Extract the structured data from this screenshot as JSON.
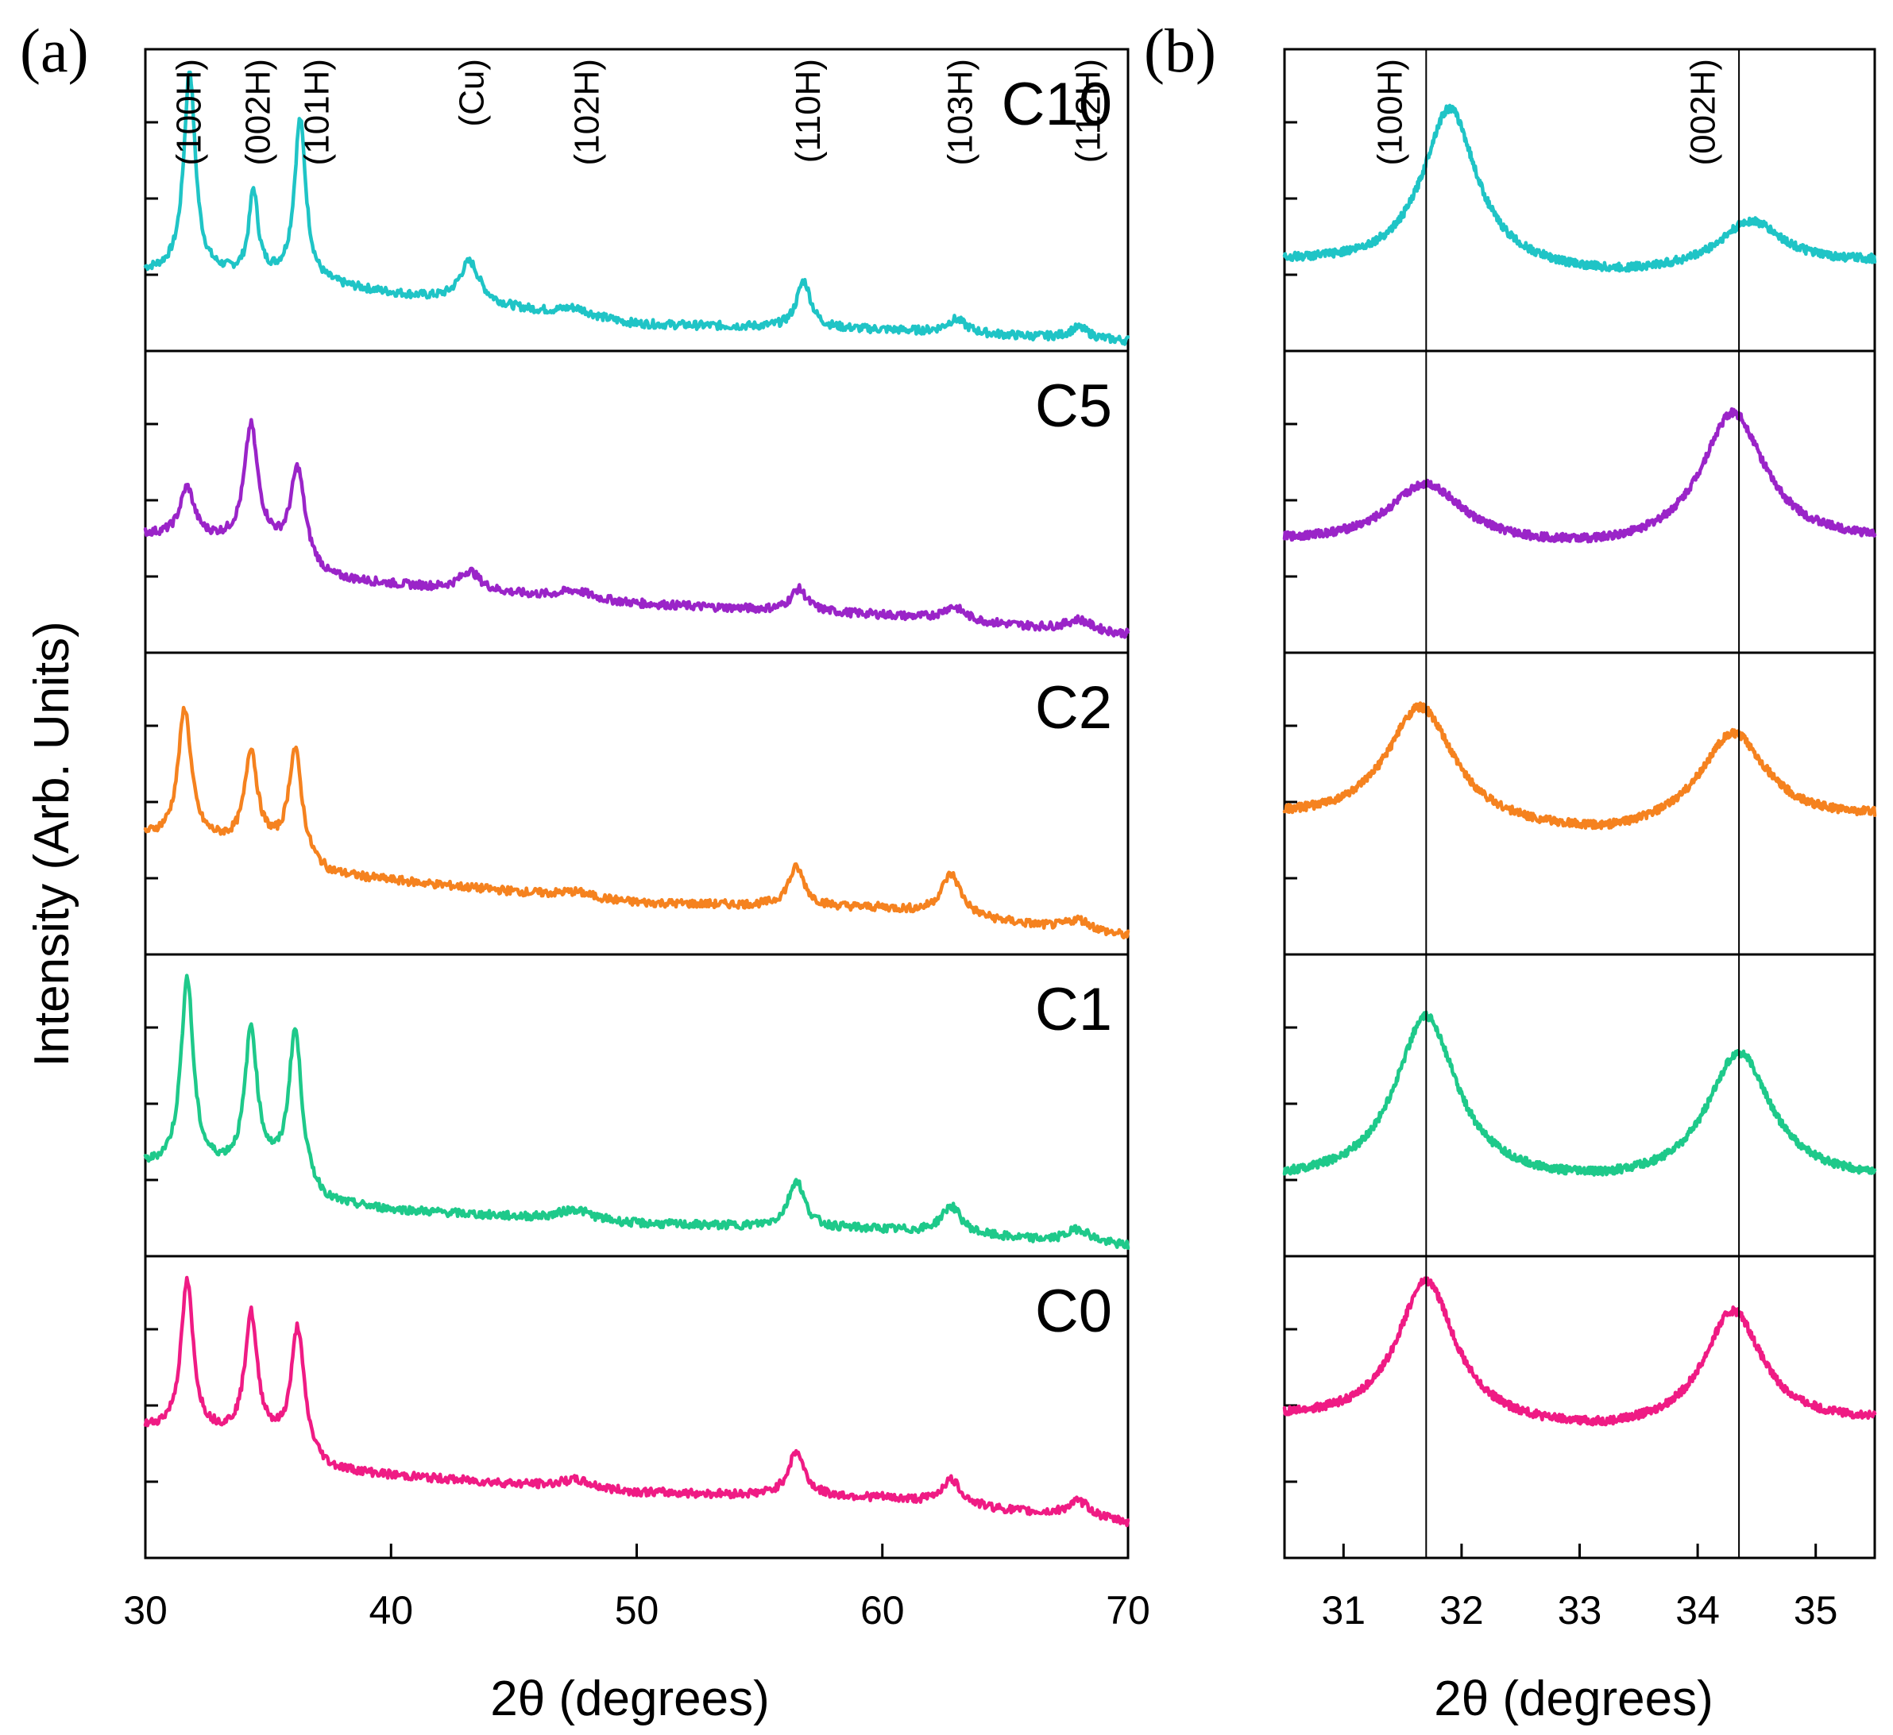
{
  "chart_data": [
    {
      "id": "a",
      "type": "line",
      "panel_label": "(a)",
      "xlabel": "2θ (degrees)",
      "ylabel": "Intensity (Arb. Units)",
      "xlim": [
        30,
        70
      ],
      "ylim": [
        0,
        1
      ],
      "x_ticks": [
        30,
        40,
        50,
        60,
        70
      ],
      "x_tick_labels": [
        "30",
        "40",
        "50",
        "60",
        "70"
      ],
      "stacked": true,
      "series": [
        {
          "name": "C10",
          "label": "C10",
          "color": "#1fc4c6",
          "baseline": [
            [
              30,
              0.22
            ],
            [
              35,
              0.2
            ],
            [
              40,
              0.14
            ],
            [
              50,
              0.03
            ],
            [
              60,
              0.01
            ],
            [
              70,
              -0.03
            ]
          ],
          "peaks": [
            [
              31.8,
              0.73,
              0.28
            ],
            [
              34.4,
              0.3,
              0.22
            ],
            [
              36.3,
              0.58,
              0.28
            ],
            [
              43.2,
              0.15,
              0.5
            ],
            [
              47.5,
              0.03,
              0.8
            ],
            [
              56.8,
              0.17,
              0.35
            ],
            [
              63.0,
              0.05,
              0.5
            ],
            [
              68.0,
              0.04,
              0.5
            ]
          ]
        },
        {
          "name": "C5",
          "label": "C5",
          "color": "#9a24c8",
          "baseline": [
            [
              30,
              0.36
            ],
            [
              35,
              0.32
            ],
            [
              37.5,
              0.2
            ],
            [
              40,
              0.18
            ],
            [
              50,
              0.11
            ],
            [
              60,
              0.07
            ],
            [
              70,
              0.0
            ]
          ],
          "peaks": [
            [
              31.7,
              0.18,
              0.35
            ],
            [
              34.3,
              0.42,
              0.33
            ],
            [
              36.2,
              0.33,
              0.35
            ],
            [
              43.2,
              0.07,
              0.5
            ],
            [
              47.5,
              0.03,
              0.8
            ],
            [
              56.6,
              0.08,
              0.4
            ],
            [
              62.9,
              0.05,
              0.55
            ],
            [
              68.0,
              0.04,
              0.6
            ]
          ]
        },
        {
          "name": "C2",
          "label": "C2",
          "color": "#f5821f",
          "baseline": [
            [
              30,
              0.36
            ],
            [
              35,
              0.32
            ],
            [
              37.5,
              0.22
            ],
            [
              40,
              0.2
            ],
            [
              50,
              0.12
            ],
            [
              60,
              0.1
            ],
            [
              70,
              0.0
            ]
          ],
          "peaks": [
            [
              31.6,
              0.47,
              0.32
            ],
            [
              34.3,
              0.34,
              0.3
            ],
            [
              36.1,
              0.39,
              0.33
            ],
            [
              47.5,
              0.02,
              0.8
            ],
            [
              56.5,
              0.14,
              0.4
            ],
            [
              62.8,
              0.15,
              0.5
            ],
            [
              68.0,
              0.04,
              0.6
            ]
          ]
        },
        {
          "name": "C1",
          "label": "C1",
          "color": "#1ec98a",
          "baseline": [
            [
              30,
              0.26
            ],
            [
              35,
              0.24
            ],
            [
              37.5,
              0.12
            ],
            [
              40,
              0.1
            ],
            [
              50,
              0.05
            ],
            [
              60,
              0.03
            ],
            [
              70,
              -0.03
            ]
          ],
          "peaks": [
            [
              31.7,
              0.68,
              0.3
            ],
            [
              34.3,
              0.5,
              0.3
            ],
            [
              36.1,
              0.55,
              0.32
            ],
            [
              47.5,
              0.04,
              0.8
            ],
            [
              56.5,
              0.17,
              0.4
            ],
            [
              62.8,
              0.1,
              0.5
            ],
            [
              68.0,
              0.05,
              0.6
            ]
          ]
        },
        {
          "name": "C0",
          "label": "C0",
          "color": "#ef1b84",
          "baseline": [
            [
              30,
              0.4
            ],
            [
              35,
              0.36
            ],
            [
              37.5,
              0.25
            ],
            [
              40,
              0.23
            ],
            [
              50,
              0.17
            ],
            [
              60,
              0.15
            ],
            [
              70,
              0.06
            ]
          ],
          "peaks": [
            [
              31.7,
              0.54,
              0.3
            ],
            [
              34.3,
              0.44,
              0.3
            ],
            [
              36.2,
              0.45,
              0.32
            ],
            [
              47.5,
              0.03,
              0.8
            ],
            [
              56.5,
              0.16,
              0.4
            ],
            [
              62.8,
              0.09,
              0.5
            ],
            [
              68.0,
              0.06,
              0.6
            ]
          ]
        }
      ],
      "annotations": [
        {
          "text": "(100H)",
          "x": 31.8
        },
        {
          "text": "(002H)",
          "x": 34.6
        },
        {
          "text": "(101H)",
          "x": 37.0
        },
        {
          "text": "(Cu)",
          "x": 43.3
        },
        {
          "text": "(102H)",
          "x": 48.0
        },
        {
          "text": "(110H)",
          "x": 57.0
        },
        {
          "text": "(103H)",
          "x": 63.2
        },
        {
          "text": "(112H)",
          "x": 68.4
        }
      ]
    },
    {
      "id": "b",
      "type": "line",
      "panel_label": "(b)",
      "xlabel": "2θ (degrees)",
      "xlim": [
        30.5,
        35.5
      ],
      "ylim": [
        0,
        1
      ],
      "x_ticks": [
        31,
        32,
        33,
        34,
        35
      ],
      "x_tick_labels": [
        "31",
        "32",
        "33",
        "34",
        "35"
      ],
      "reference_lines": [
        31.7,
        34.35
      ],
      "stacked": true,
      "series": [
        {
          "name": "C10",
          "color": "#1fc4c6",
          "baseline": [
            [
              30.5,
              0.25
            ],
            [
              33.3,
              0.2
            ],
            [
              35.5,
              0.25
            ]
          ],
          "peaks": [
            [
              31.9,
              0.58,
              0.28
            ],
            [
              34.45,
              0.17,
              0.33
            ]
          ]
        },
        {
          "name": "C5",
          "color": "#9a24c8",
          "baseline": [
            [
              30.5,
              0.33
            ],
            [
              33.2,
              0.3
            ],
            [
              35.5,
              0.33
            ]
          ],
          "peaks": [
            [
              31.7,
              0.22,
              0.38
            ],
            [
              34.3,
              0.48,
              0.33
            ]
          ]
        },
        {
          "name": "C2",
          "color": "#f5821f",
          "baseline": [
            [
              30.5,
              0.42
            ],
            [
              33.2,
              0.35
            ],
            [
              35.5,
              0.42
            ]
          ],
          "peaks": [
            [
              31.65,
              0.43,
              0.35
            ],
            [
              34.3,
              0.34,
              0.35
            ]
          ]
        },
        {
          "name": "C1",
          "color": "#1ec98a",
          "baseline": [
            [
              30.5,
              0.2
            ],
            [
              33.2,
              0.18
            ],
            [
              35.5,
              0.2
            ]
          ],
          "peaks": [
            [
              31.7,
              0.6,
              0.32
            ],
            [
              34.35,
              0.47,
              0.33
            ]
          ]
        },
        {
          "name": "C0",
          "color": "#ef1b84",
          "baseline": [
            [
              30.5,
              0.43
            ],
            [
              33.2,
              0.38
            ],
            [
              35.5,
              0.42
            ]
          ],
          "peaks": [
            [
              31.7,
              0.52,
              0.3
            ],
            [
              34.3,
              0.42,
              0.3
            ]
          ]
        }
      ],
      "annotations": [
        {
          "text": "(100H)",
          "x": 31.4
        },
        {
          "text": "(002H)",
          "x": 34.05
        }
      ]
    }
  ]
}
